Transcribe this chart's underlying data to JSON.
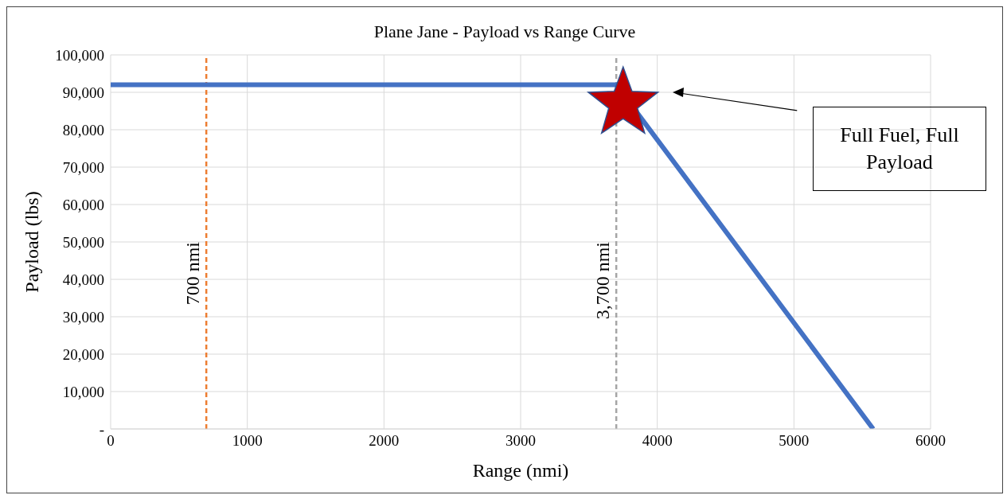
{
  "chart_data": {
    "type": "line",
    "title": "Plane Jane - Payload vs Range Curve",
    "xlabel": "Range (nmi)",
    "ylabel": "Payload (lbs)",
    "series": [
      {
        "color": "#4472c4",
        "x": [
          0,
          3700,
          5580
        ],
        "values": [
          92000,
          92000,
          0
        ],
        "marker": "none",
        "line_style": "solid"
      },
      {
        "type": "scatter",
        "color": "#c00000",
        "x": [
          3750
        ],
        "values": [
          87000
        ],
        "marker": "star"
      }
    ],
    "xlim": [
      0,
      6000
    ],
    "xticks": [
      0,
      1000,
      2000,
      3000,
      4000,
      5000,
      6000
    ],
    "ylim": [
      0,
      100000
    ],
    "yticks": [
      {
        "value": 0,
        "label": "-"
      },
      {
        "value": 10000,
        "label": "10,000"
      },
      {
        "value": 20000,
        "label": "20,000"
      },
      {
        "value": 30000,
        "label": "30,000"
      },
      {
        "value": 40000,
        "label": "40,000"
      },
      {
        "value": 50000,
        "label": "50,000"
      },
      {
        "value": 60000,
        "label": "60,000"
      },
      {
        "value": 70000,
        "label": "70,000"
      },
      {
        "value": 80000,
        "label": "80,000"
      },
      {
        "value": 90000,
        "label": "90,000"
      },
      {
        "value": 100000,
        "label": "100,000"
      }
    ],
    "grid": true,
    "ref_lines": [
      {
        "axis": "x",
        "value": 700,
        "label": "700 nmi",
        "color": "#ed7d31",
        "line_style": "dashed"
      },
      {
        "axis": "x",
        "value": 3700,
        "label": "3,700 nmi",
        "color": "#a5a5a5",
        "line_style": "dashed"
      }
    ],
    "annotations": [
      "Full Fuel, Full Payload"
    ]
  }
}
